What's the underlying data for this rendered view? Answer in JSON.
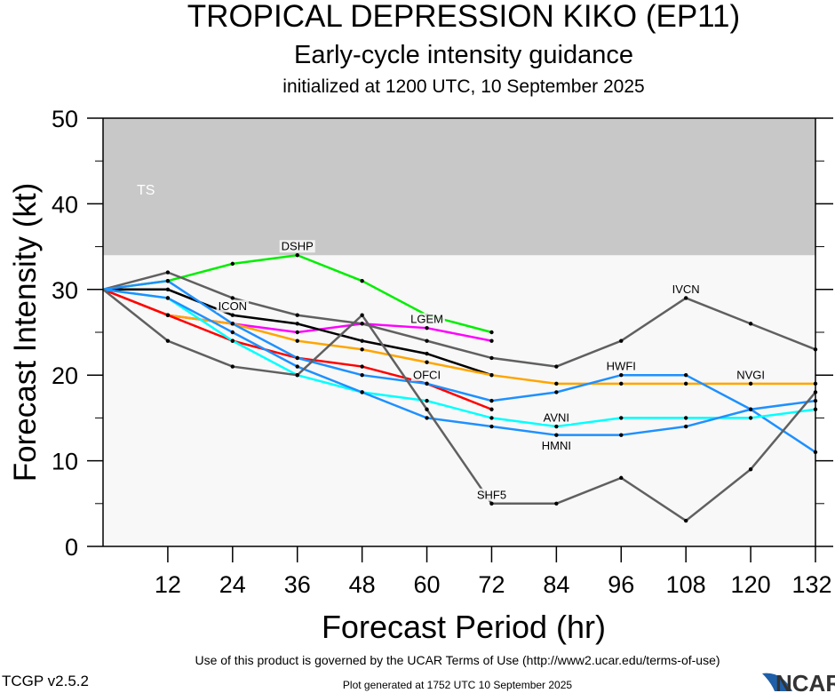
{
  "chart_data": {
    "type": "line",
    "title": "TROPICAL DEPRESSION KIKO (EP11)",
    "subtitle": "Early-cycle intensity guidance",
    "subtitle2": "initialized at 1200 UTC, 10 September 2025",
    "xlabel": "Forecast Period (hr)",
    "ylabel": "Forecast Intensity (kt)",
    "xlim": [
      0,
      132
    ],
    "ylim": [
      0,
      50
    ],
    "x_ticks": [
      12,
      24,
      36,
      48,
      60,
      72,
      84,
      96,
      108,
      120,
      132
    ],
    "y_ticks": [
      0,
      10,
      20,
      30,
      40,
      50
    ],
    "bands": [
      {
        "label": "TS",
        "from": 34,
        "to": 50,
        "color": "#c8c8c8"
      }
    ],
    "x": [
      0,
      12,
      24,
      36,
      48,
      60,
      72,
      84,
      96,
      108,
      120,
      132
    ],
    "series": [
      {
        "name": "DSHP",
        "color": "#00ee00",
        "values": [
          30,
          31,
          33,
          34,
          31,
          27,
          25,
          null,
          null,
          null,
          null,
          null
        ]
      },
      {
        "name": "LGEM",
        "color": "#ff00ff",
        "values": [
          30,
          27,
          26,
          25,
          26,
          25.5,
          24,
          null,
          null,
          null,
          null,
          null
        ]
      },
      {
        "name": "IVCN",
        "color": "#606060",
        "values": [
          30,
          32,
          29,
          27,
          26,
          24,
          22,
          21,
          24,
          29,
          26,
          23
        ]
      },
      {
        "name": "ICON",
        "color": "#000000",
        "values": [
          30,
          30,
          27,
          26,
          24,
          22.5,
          20,
          null,
          null,
          null,
          null,
          null
        ]
      },
      {
        "name": "NVGI",
        "color": "#ffa500",
        "values": [
          30,
          27,
          26,
          24,
          23,
          21.5,
          20,
          19,
          19,
          19,
          19,
          19
        ]
      },
      {
        "name": "OFCI",
        "color": "#ff0000",
        "values": [
          30,
          27,
          24,
          22,
          21,
          19,
          16,
          null,
          null,
          null,
          null,
          null
        ]
      },
      {
        "name": "HWFI",
        "color": "#1e90ff",
        "values": [
          30,
          31,
          26,
          22,
          20,
          19,
          17,
          18,
          20,
          20,
          16,
          11
        ]
      },
      {
        "name": "AVNI",
        "color": "#00ffff",
        "values": [
          30,
          29,
          24,
          20,
          18,
          17,
          15,
          14,
          15,
          15,
          15,
          16
        ]
      },
      {
        "name": "HMNI",
        "color": "#1e90ff",
        "values": [
          30,
          29,
          25,
          21,
          18,
          15,
          14,
          13,
          13,
          14,
          16,
          17
        ]
      },
      {
        "name": "SHF5",
        "color": "#606060",
        "values": [
          30,
          24,
          21,
          20,
          27,
          16,
          5,
          5,
          8,
          3,
          9,
          18
        ]
      }
    ]
  },
  "footer": {
    "terms": "Use of this product is governed by the UCAR Terms of Use (http://www2.ucar.edu/terms-of-use)",
    "version": "TCGP v2.5.2",
    "generated": "Plot generated at 1752 UTC   10 September 2025",
    "logo": "NCAR"
  }
}
